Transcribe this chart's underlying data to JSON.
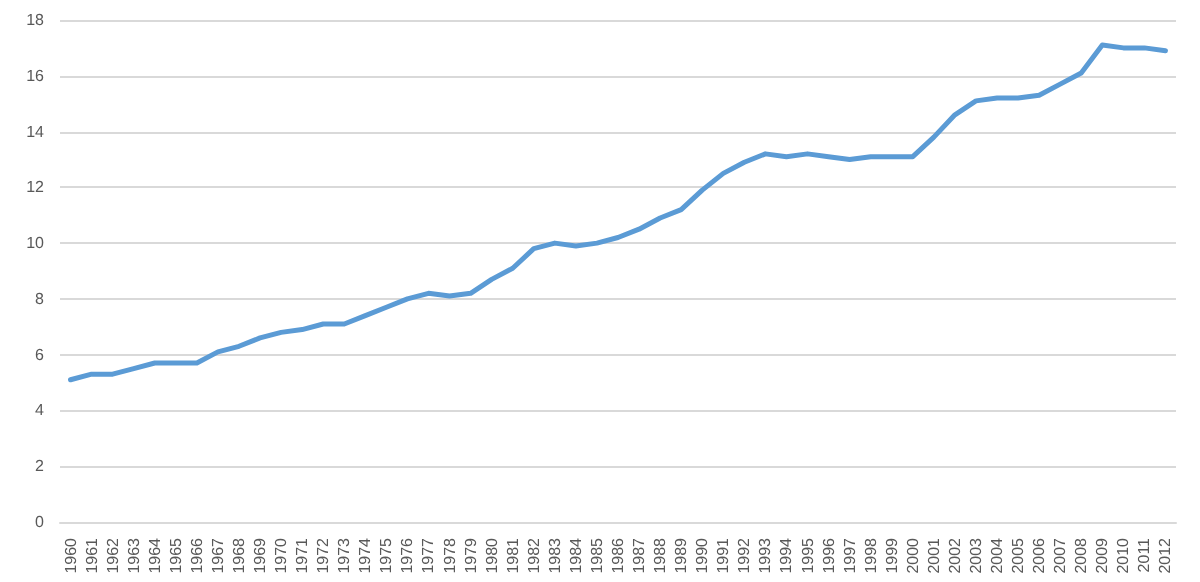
{
  "chart_data": {
    "type": "line",
    "categories": [
      "1960",
      "1961",
      "1962",
      "1963",
      "1964",
      "1965",
      "1966",
      "1967",
      "1968",
      "1969",
      "1970",
      "1971",
      "1972",
      "1973",
      "1974",
      "1975",
      "1976",
      "1977",
      "1978",
      "1979",
      "1980",
      "1981",
      "1982",
      "1983",
      "1984",
      "1985",
      "1986",
      "1987",
      "1988",
      "1989",
      "1990",
      "1991",
      "1992",
      "1993",
      "1994",
      "1995",
      "1996",
      "1997",
      "1998",
      "1999",
      "2000",
      "2001",
      "2002",
      "2003",
      "2004",
      "2005",
      "2006",
      "2007",
      "2008",
      "2009",
      "2010",
      "2011",
      "2012"
    ],
    "series": [
      {
        "color": "#5b9bd5",
        "values": [
          5.1,
          5.3,
          5.3,
          5.5,
          5.7,
          5.7,
          5.7,
          6.1,
          6.3,
          6.6,
          6.8,
          6.9,
          7.1,
          7.1,
          7.4,
          7.7,
          8.0,
          8.2,
          8.1,
          8.2,
          8.7,
          9.1,
          9.8,
          10.0,
          9.9,
          10.0,
          10.2,
          10.5,
          10.9,
          11.2,
          11.9,
          12.5,
          12.9,
          13.2,
          13.1,
          13.2,
          13.1,
          13.0,
          13.1,
          13.1,
          13.1,
          13.8,
          14.6,
          15.1,
          15.2,
          15.2,
          15.3,
          15.7,
          16.1,
          17.1,
          17.0,
          17.0,
          16.9
        ]
      }
    ],
    "ylim": [
      0,
      18
    ],
    "yticks": [
      0,
      2,
      4,
      6,
      8,
      10,
      12,
      14,
      16,
      18
    ],
    "grid": "y",
    "marker": "none",
    "line_style": "solid"
  }
}
